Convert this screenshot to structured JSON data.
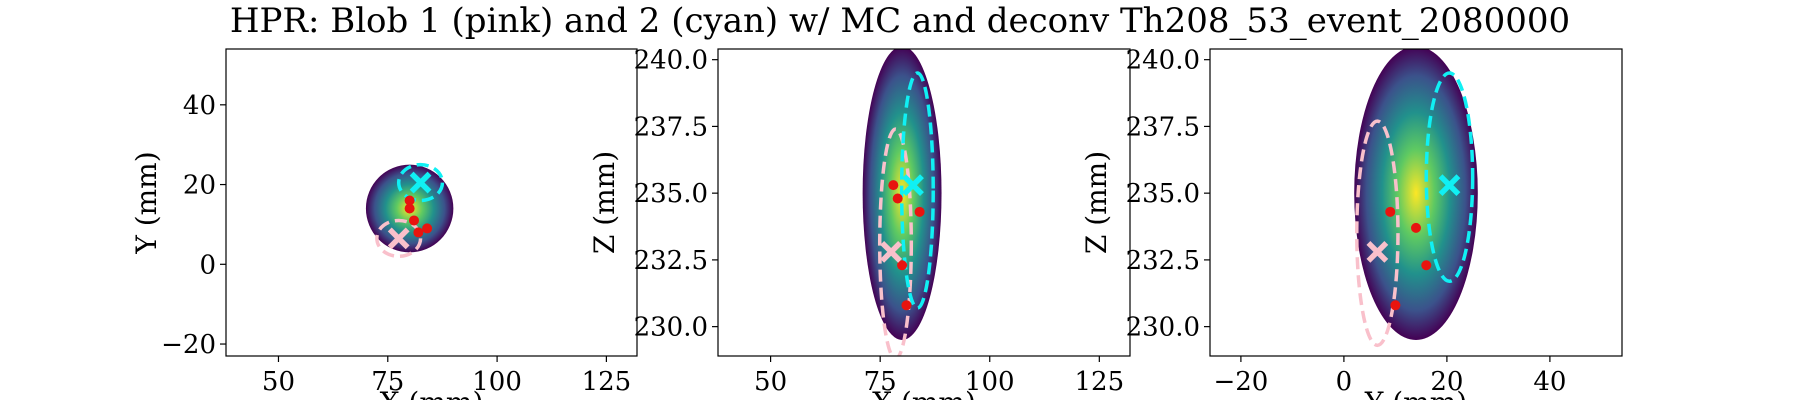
{
  "figure": {
    "title": "HPR: Blob 1 (pink) and 2 (cyan) w/ MC and deconv Th208_53_event_2080000"
  },
  "colors": {
    "blob1": "#f9c0cb",
    "blob2": "#10f0f4",
    "mc_points": "#e8140f",
    "colormap": [
      "#440154",
      "#3b528b",
      "#21918c",
      "#5ec962",
      "#fde725"
    ]
  },
  "chart_data": [
    {
      "type": "heatmap",
      "name": "xy-projection",
      "title": "",
      "xlabel": "X (mm)",
      "ylabel": "Y (mm)",
      "xlim": [
        38,
        132
      ],
      "ylim": [
        -23,
        54
      ],
      "xticks": [
        50,
        75,
        100,
        125
      ],
      "yticks": [
        -20,
        0,
        20,
        40
      ],
      "ytick_labels": [
        "−20",
        "0",
        "20",
        "40"
      ],
      "blob_region": {
        "center": [
          80,
          14
        ],
        "semi_axes": [
          10,
          11
        ],
        "peak": [
          80,
          14
        ]
      },
      "mc_points": [
        [
          80,
          14
        ],
        [
          80,
          16
        ],
        [
          81,
          11
        ],
        [
          82,
          8
        ],
        [
          84,
          9
        ]
      ],
      "blob1": {
        "marker": [
          77.5,
          6.5
        ],
        "ellipse_center": [
          77.5,
          6.5
        ],
        "ellipse_radii": [
          5,
          4.5
        ]
      },
      "blob2": {
        "marker": [
          82.5,
          20.5
        ],
        "ellipse_center": [
          82.5,
          20.5
        ],
        "ellipse_radii": [
          5,
          4.5
        ]
      }
    },
    {
      "type": "heatmap",
      "name": "xz-projection",
      "title": "",
      "xlabel": "X (mm)",
      "ylabel": "Z (mm)",
      "xlim": [
        38,
        132
      ],
      "ylim": [
        228.9,
        240.4
      ],
      "xticks": [
        50,
        75,
        100,
        125
      ],
      "yticks": [
        230.0,
        232.5,
        235.0,
        237.5,
        240.0
      ],
      "ytick_labels": [
        "230.0",
        "232.5",
        "235.0",
        "237.5",
        "240.0"
      ],
      "blob_region": {
        "center": [
          80,
          235
        ],
        "semi_axes": [
          9,
          5.5
        ],
        "peak": [
          79,
          235
        ]
      },
      "mc_points": [
        [
          78,
          235.3
        ],
        [
          79,
          234.8
        ],
        [
          84,
          234.3
        ],
        [
          80,
          232.3
        ],
        [
          81,
          230.8
        ]
      ],
      "blob1": {
        "marker": [
          77.5,
          232.8
        ],
        "ellipse_center": [
          78.5,
          233.1
        ],
        "ellipse_radii": [
          3.6,
          4.3
        ]
      },
      "blob2": {
        "marker": [
          82.5,
          235.3
        ],
        "ellipse_center": [
          83.5,
          235.1
        ],
        "ellipse_radii": [
          3.6,
          4.4
        ]
      }
    },
    {
      "type": "heatmap",
      "name": "yz-projection",
      "title": "",
      "xlabel": "Y (mm)",
      "ylabel": "Z (mm)",
      "xlim": [
        -26,
        54
      ],
      "ylim": [
        228.9,
        240.4
      ],
      "xticks": [
        -20,
        0,
        20,
        40
      ],
      "xtick_labels": [
        "−20",
        "0",
        "20",
        "40"
      ],
      "yticks": [
        230.0,
        232.5,
        235.0,
        237.5,
        240.0
      ],
      "ytick_labels": [
        "230.0",
        "232.5",
        "235.0",
        "237.5",
        "240.0"
      ],
      "blob_region": {
        "center": [
          14,
          235
        ],
        "semi_axes": [
          12,
          5.5
        ],
        "peak": [
          14,
          235.3
        ]
      },
      "mc_points": [
        [
          9,
          234.3
        ],
        [
          14,
          233.7
        ],
        [
          16,
          232.3
        ],
        [
          10,
          230.8
        ]
      ],
      "blob1": {
        "marker": [
          6.5,
          232.8
        ],
        "ellipse_center": [
          6.5,
          233.5
        ],
        "ellipse_radii": [
          4,
          4.2
        ]
      },
      "blob2": {
        "marker": [
          20.5,
          235.3
        ],
        "ellipse_center": [
          20.5,
          235.6
        ],
        "ellipse_radii": [
          4.5,
          3.9
        ]
      }
    }
  ]
}
